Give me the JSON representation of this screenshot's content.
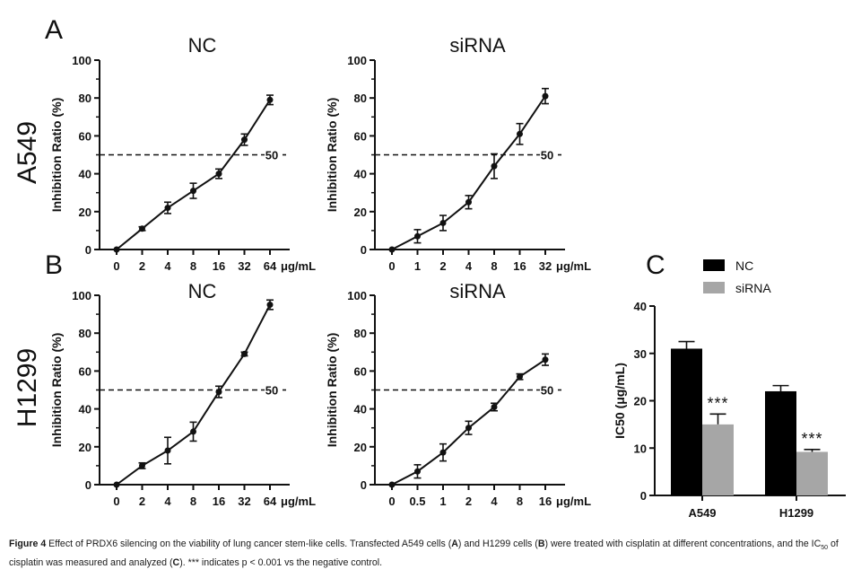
{
  "panel_labels": {
    "A": "A",
    "B": "B",
    "C": "C"
  },
  "row_labels": {
    "A": "A549",
    "B": "H1299"
  },
  "caption": {
    "lead": "Figure 4",
    "text1": " Effect of PRDX6 silencing on the viability of lung cancer stem-like cells. Transfected A549 cells (",
    "A": "A",
    "text2": ") and H1299 cells (",
    "B": "B",
    "text3": ") were treated with cisplatin at different concentrations, and the IC",
    "sub": "50",
    "text4": " of cisplatin was measured and analyzed (",
    "C": "C",
    "text5": "). *** indicates p < 0.001 vs the negative control."
  },
  "chart_data": [
    {
      "id": "A-NC",
      "type": "line",
      "title": "NC",
      "ylabel": "Inhibition Ratio (%)",
      "xlabel": "μg/mL",
      "x_categories": [
        "0",
        "2",
        "4",
        "8",
        "16",
        "32",
        "64"
      ],
      "values": [
        0,
        11,
        22,
        31,
        40,
        58,
        79
      ],
      "errors": [
        0,
        1,
        3,
        4,
        2.5,
        3,
        2.5
      ],
      "ylim": [
        0,
        100
      ],
      "yticks": [
        0,
        20,
        40,
        60,
        80,
        100
      ],
      "reference_line": {
        "y": 50,
        "label": "50"
      }
    },
    {
      "id": "A-siRNA",
      "type": "line",
      "title": "siRNA",
      "ylabel": "Inhibition Ratio (%)",
      "xlabel": "μg/mL",
      "x_categories": [
        "0",
        "1",
        "2",
        "4",
        "8",
        "16",
        "32"
      ],
      "values": [
        0,
        7,
        14,
        25,
        44,
        61,
        81
      ],
      "errors": [
        0,
        3.5,
        4,
        3.5,
        6.5,
        5.5,
        4
      ],
      "ylim": [
        0,
        100
      ],
      "yticks": [
        0,
        20,
        40,
        60,
        80,
        100
      ],
      "reference_line": {
        "y": 50,
        "label": "50"
      }
    },
    {
      "id": "B-NC",
      "type": "line",
      "title": "NC",
      "ylabel": "Inhibition Ratio (%)",
      "xlabel": "μg/mL",
      "x_categories": [
        "0",
        "2",
        "4",
        "8",
        "16",
        "32",
        "64"
      ],
      "values": [
        0,
        10,
        18,
        28,
        49,
        69,
        95
      ],
      "errors": [
        0,
        1.5,
        7,
        5,
        3,
        1,
        2.5
      ],
      "ylim": [
        0,
        100
      ],
      "yticks": [
        0,
        20,
        40,
        60,
        80,
        100
      ],
      "reference_line": {
        "y": 50,
        "label": "50"
      }
    },
    {
      "id": "B-siRNA",
      "type": "line",
      "title": "siRNA",
      "ylabel": "Inhibition Ratio (%)",
      "xlabel": "μg/mL",
      "x_categories": [
        "0",
        "0.5",
        "1",
        "2",
        "4",
        "8",
        "16"
      ],
      "values": [
        0,
        7,
        17,
        30,
        41,
        57,
        66
      ],
      "errors": [
        0,
        3.5,
        4.5,
        3.5,
        2,
        1.5,
        3
      ],
      "ylim": [
        0,
        100
      ],
      "yticks": [
        0,
        20,
        40,
        60,
        80,
        100
      ],
      "reference_line": {
        "y": 50,
        "label": "50"
      }
    },
    {
      "id": "C",
      "type": "bar",
      "ylabel": "IC50 (μg/mL)",
      "categories": [
        "A549",
        "H1299"
      ],
      "series": [
        {
          "name": "NC",
          "color": "#000000",
          "values": [
            31,
            22
          ],
          "errors": [
            1.5,
            1.2
          ]
        },
        {
          "name": "siRNA",
          "color": "#a6a6a6",
          "values": [
            15,
            9.2
          ],
          "errors": [
            2.2,
            0.5
          ]
        }
      ],
      "annotations": [
        "***",
        "***"
      ],
      "ylim": [
        0,
        40
      ],
      "yticks": [
        0,
        10,
        20,
        30,
        40
      ]
    }
  ]
}
